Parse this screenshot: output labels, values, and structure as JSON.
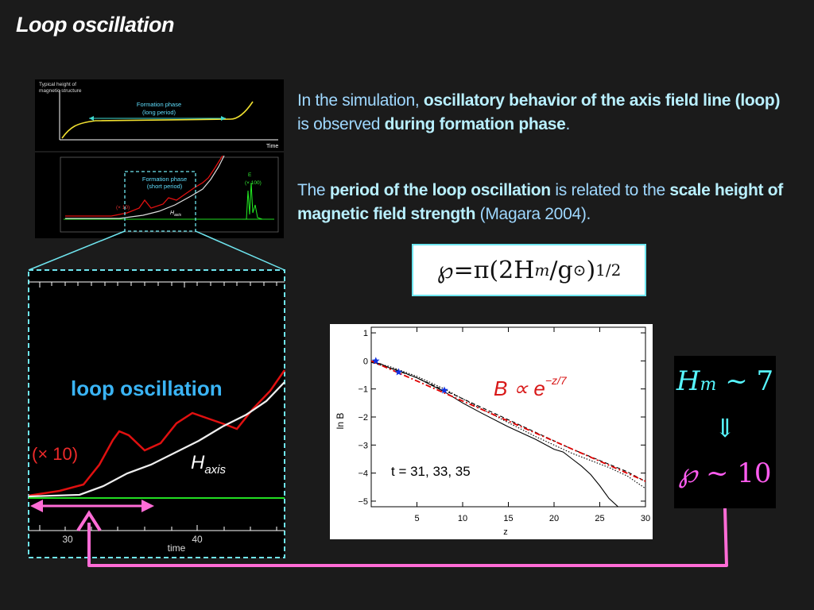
{
  "title": "Loop oscillation",
  "paragraph1": {
    "t1": "In the simulation, ",
    "b1": "oscillatory behavior of the axis field line (loop)",
    "t2": " is observed ",
    "b2": "during formation phase",
    "t3": "."
  },
  "paragraph2": {
    "t1": "The ",
    "b1": "period of the loop oscillation",
    "t2": " is related to the ",
    "b2": "scale height of magnetic field strength",
    "t3": " (Magara 2004)."
  },
  "formula": {
    "symbol": "℘",
    "eq": "=",
    "body": "π(2H",
    "sub": "m",
    "rest": "/g",
    "sub2": "⊙",
    "close": ")",
    "sup": "1/2"
  },
  "summary": {
    "hm_label": "H",
    "hm_sub": "m",
    "hm_value": "~ 7",
    "arrow": "⇓",
    "period_symbol": "℘",
    "period_value": "~ 10"
  },
  "thumb1": {
    "ylabel_line1": "Typical height of",
    "ylabel_line2": "magnetic structure",
    "phase_line1": "Formation phase",
    "phase_line2": "(long period)",
    "xlabel": "Time"
  },
  "thumb2": {
    "phase_line1": "Formation phase",
    "phase_line2": "(short period)",
    "left_label": "(× 10)",
    "h_label": "H",
    "h_sub": "axis",
    "e_label": "E",
    "e_scale": "(× 100)"
  },
  "zoom": {
    "overlay_label": "loop oscillation",
    "scale_label": "(× 10)",
    "h_label": "H",
    "h_sub": "axis",
    "tick_30": "30",
    "tick_40": "40",
    "xlabel": "time"
  },
  "chart_data": {
    "type": "line",
    "xlabel": "z",
    "ylabel": "ln B",
    "xlim": [
      0,
      30
    ],
    "ylim": [
      -5.2,
      1.2
    ],
    "xticks": [
      5,
      10,
      15,
      20,
      25,
      30
    ],
    "yticks": [
      1,
      0,
      -1,
      -2,
      -3,
      -4,
      -5
    ],
    "annotation_time": "t = 31, 33, 35",
    "annotation_fit": "B ∝ e",
    "annotation_fit_exp": "−z/7",
    "series": [
      {
        "x": [
          0,
          1,
          2,
          3,
          5,
          8,
          10,
          12,
          15,
          18,
          20,
          21,
          22,
          23,
          24,
          25,
          26,
          27
        ],
        "y": [
          -0.05,
          -0.1,
          -0.25,
          -0.35,
          -0.6,
          -1.1,
          -1.5,
          -1.85,
          -2.35,
          -2.8,
          -3.15,
          -3.25,
          -3.5,
          -3.75,
          -4.05,
          -4.45,
          -4.9,
          -5.2
        ],
        "color": "#000000",
        "style": "solid"
      },
      {
        "x": [
          0,
          2,
          5,
          8,
          10,
          12,
          15,
          18,
          20,
          22,
          24,
          26,
          28,
          30
        ],
        "y": [
          -0.05,
          -0.2,
          -0.55,
          -1.0,
          -1.35,
          -1.7,
          -2.2,
          -2.7,
          -3.0,
          -3.3,
          -3.55,
          -3.8,
          -4.1,
          -4.55
        ],
        "color": "#000000",
        "style": "dotted"
      },
      {
        "x": [
          0,
          2,
          5,
          8,
          10,
          12,
          15,
          18,
          20,
          22,
          25,
          28,
          30
        ],
        "y": [
          -0.05,
          -0.25,
          -0.6,
          -1.05,
          -1.35,
          -1.65,
          -2.1,
          -2.55,
          -2.85,
          -3.15,
          -3.55,
          -3.95,
          -4.3
        ],
        "color": "#000000",
        "style": "dashed"
      },
      {
        "x": [
          0,
          30
        ],
        "y": [
          0,
          -4.29
        ],
        "color": "#e00000",
        "style": "dashdot"
      }
    ],
    "markers": {
      "x": [
        0.5,
        3,
        8
      ],
      "y": [
        0,
        -0.4,
        -1.05
      ],
      "color": "#1030e0",
      "shape": "star"
    }
  }
}
